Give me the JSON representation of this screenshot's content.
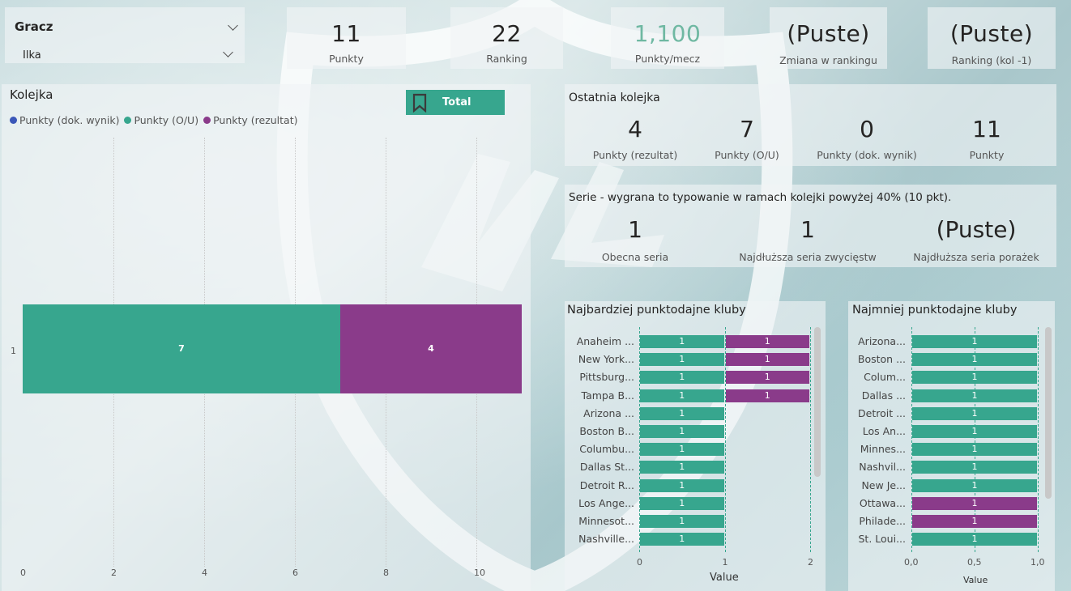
{
  "slicer": {
    "title": "Gracz",
    "value": "Ilka"
  },
  "kpis": [
    {
      "value": "11",
      "label": "Punkty"
    },
    {
      "value": "22",
      "label": "Ranking"
    },
    {
      "value": "1,100",
      "label": "Punkty/mecz"
    },
    {
      "value": "(Puste)",
      "label": "Zmiana w rankingu"
    },
    {
      "value": "(Puste)",
      "label": "Ranking (kol -1)"
    }
  ],
  "colors": {
    "teal": "#37a68e",
    "purple": "#8a3b8a",
    "blue": "#3a57b8",
    "kpi_accent": "#6fb8a2"
  },
  "kolejka": {
    "title": "Kolejka",
    "button_label": "Total",
    "legend": [
      "Punkty (dok. wynik)",
      "Punkty (O/U)",
      "Punkty (rezultat)"
    ],
    "chart_data": {
      "type": "bar",
      "orientation": "horizontal-stacked",
      "categories": [
        "1"
      ],
      "series": [
        {
          "name": "Punkty (dok. wynik)",
          "values": [
            0
          ]
        },
        {
          "name": "Punkty (O/U)",
          "values": [
            7
          ]
        },
        {
          "name": "Punkty (rezultat)",
          "values": [
            4
          ]
        }
      ],
      "xlim": [
        0,
        11
      ],
      "xticks": [
        "0",
        "2",
        "4",
        "6",
        "8",
        "10"
      ]
    }
  },
  "ostatnia": {
    "title": "Ostatnia kolejka",
    "items": [
      {
        "value": "4",
        "label": "Punkty (rezultat)"
      },
      {
        "value": "7",
        "label": "Punkty (O/U)"
      },
      {
        "value": "0",
        "label": "Punkty (dok. wynik)"
      },
      {
        "value": "11",
        "label": "Punkty"
      }
    ]
  },
  "serie": {
    "title": "Serie - wygrana to typowanie w ramach kolejki powyżej 40% (10 pkt).",
    "items": [
      {
        "value": "1",
        "label": "Obecna seria"
      },
      {
        "value": "1",
        "label": "Najdłuższa seria zwycięstw"
      },
      {
        "value": "(Puste)",
        "label": "Najdłuższa seria porażek"
      }
    ]
  },
  "top_clubs": {
    "title": "Najbardziej punktodajne kluby",
    "axis_title": "Value",
    "xticks": [
      "0",
      "1",
      "2"
    ],
    "chart_data": {
      "type": "bar",
      "orientation": "horizontal-stacked",
      "categories": [
        "Anaheim ...",
        "New York...",
        "Pittsburg...",
        "Tampa B...",
        "Arizona ...",
        "Boston B...",
        "Columbu...",
        "Dallas St...",
        "Detroit R...",
        "Los Ange...",
        "Minnesot...",
        "Nashville..."
      ],
      "series": [
        {
          "values": [
            1,
            1,
            1,
            1,
            1,
            1,
            1,
            1,
            1,
            1,
            1,
            1
          ]
        },
        {
          "values": [
            1,
            1,
            1,
            1,
            0,
            0,
            0,
            0,
            0,
            0,
            0,
            0
          ]
        }
      ],
      "xlim": [
        0,
        2
      ]
    }
  },
  "bottom_clubs": {
    "title": "Najmniej punktodajne kluby",
    "axis_title": "Value",
    "xticks": [
      "0,0",
      "0,5",
      "1,0"
    ],
    "chart_data": {
      "type": "bar",
      "orientation": "horizontal",
      "categories": [
        "Arizona...",
        "Boston ...",
        "Colum...",
        "Dallas ...",
        "Detroit ...",
        "Los An...",
        "Minnes...",
        "Nashvil...",
        "New Je...",
        "Ottawa...",
        "Philade...",
        "St. Loui..."
      ],
      "values": [
        1,
        1,
        1,
        1,
        1,
        1,
        1,
        1,
        1,
        1,
        1,
        1
      ],
      "colors": [
        "teal",
        "teal",
        "teal",
        "teal",
        "teal",
        "teal",
        "teal",
        "teal",
        "teal",
        "purple",
        "purple",
        "teal"
      ],
      "xlim": [
        0,
        1
      ]
    }
  }
}
